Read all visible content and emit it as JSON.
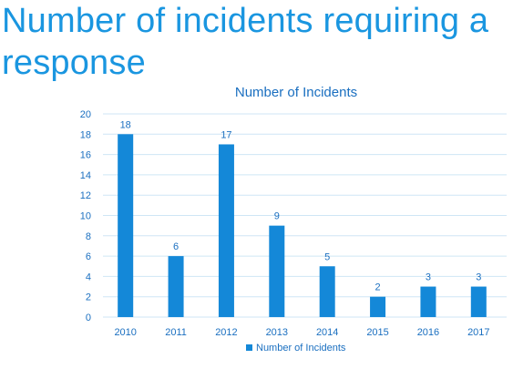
{
  "slide": {
    "title": "Number of incidents requiring a response"
  },
  "chart_data": {
    "type": "bar",
    "title": "Number of Incidents",
    "categories": [
      "2010",
      "2011",
      "2012",
      "2013",
      "2014",
      "2015",
      "2016",
      "2017"
    ],
    "series": [
      {
        "name": "Number of Incidents",
        "values": [
          18,
          6,
          17,
          9,
          5,
          2,
          3,
          3
        ]
      }
    ],
    "xlabel": "",
    "ylabel": "",
    "ylim": [
      0,
      20
    ],
    "yticks": [
      0,
      2,
      4,
      6,
      8,
      10,
      12,
      14,
      16,
      18,
      20
    ],
    "grid": true,
    "legend_position": "bottom",
    "data_labels": true,
    "colors": {
      "bar": "#1488d8",
      "text": "#1a6fc0",
      "title": "#1a6fc0",
      "grid": "#cfe6f5",
      "heading": "#1a96e0"
    }
  }
}
